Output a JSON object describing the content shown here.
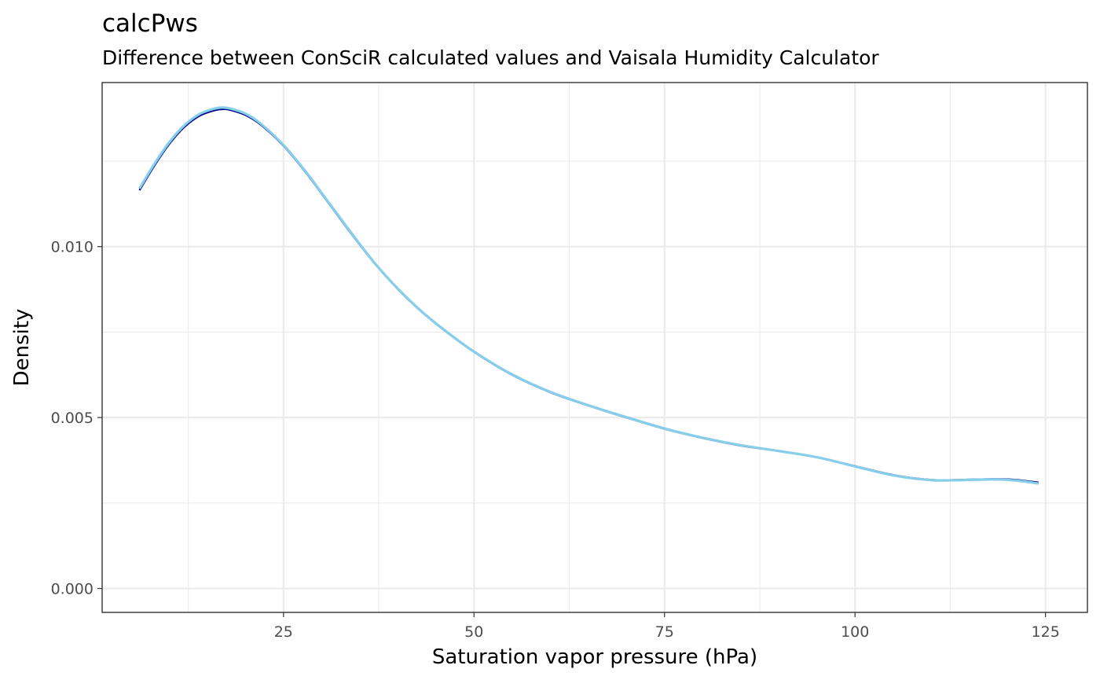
{
  "chart_data": {
    "type": "line",
    "title": "calcPws",
    "subtitle": "Difference between ConSciR calculated values and Vaisala Humidity Calculator",
    "xlabel": "Saturation vapor pressure (hPa)",
    "ylabel": "Density",
    "xlim": [
      1.2,
      130.5
    ],
    "ylim": [
      -0.0007,
      0.0148
    ],
    "x_ticks": [
      25,
      50,
      75,
      100,
      125
    ],
    "x_tick_labels": [
      "25",
      "50",
      "75",
      "100",
      "125"
    ],
    "y_ticks": [
      0.0,
      0.005,
      0.01
    ],
    "y_tick_labels": [
      "0.000",
      "0.005",
      "0.010"
    ],
    "grid": true,
    "legend": "none",
    "colors": {
      "series_1": "#00008b",
      "series_2": "#87ceeb"
    },
    "series": [
      {
        "x": [
          6.1,
          8,
          10,
          12,
          14,
          16,
          17,
          18,
          20,
          22,
          25,
          28,
          31,
          34,
          37,
          40,
          43,
          46,
          50,
          55,
          60,
          65,
          70,
          75,
          80,
          85,
          90,
          95,
          100,
          105,
          110,
          114,
          118,
          121,
          124.1
        ],
        "values": [
          0.01165,
          0.01235,
          0.013,
          0.0135,
          0.01383,
          0.01399,
          0.01402,
          0.014,
          0.01385,
          0.01357,
          0.01295,
          0.01215,
          0.01125,
          0.01035,
          0.0095,
          0.00876,
          0.00812,
          0.00757,
          0.00692,
          0.00625,
          0.00574,
          0.00535,
          0.005,
          0.00467,
          0.0044,
          0.00418,
          0.00402,
          0.00384,
          0.00358,
          0.00332,
          0.00318,
          0.00318,
          0.0032,
          0.00318,
          0.0031
        ]
      },
      {
        "x": [
          6.1,
          8,
          10,
          12,
          14,
          16,
          17,
          18,
          20,
          22,
          25,
          28,
          31,
          34,
          37,
          40,
          43,
          46,
          50,
          55,
          60,
          65,
          70,
          75,
          80,
          85,
          90,
          95,
          100,
          105,
          110,
          114,
          118,
          121,
          124.1
        ],
        "values": [
          0.0117,
          0.0124,
          0.01305,
          0.01355,
          0.01388,
          0.01404,
          0.01407,
          0.01404,
          0.01389,
          0.0136,
          0.01297,
          0.01217,
          0.01127,
          0.01037,
          0.00951,
          0.00877,
          0.00813,
          0.00758,
          0.00693,
          0.00626,
          0.00575,
          0.00536,
          0.00501,
          0.00468,
          0.00441,
          0.00419,
          0.00402,
          0.00384,
          0.00357,
          0.00331,
          0.00317,
          0.00317,
          0.00319,
          0.00316,
          0.00307
        ]
      }
    ]
  }
}
